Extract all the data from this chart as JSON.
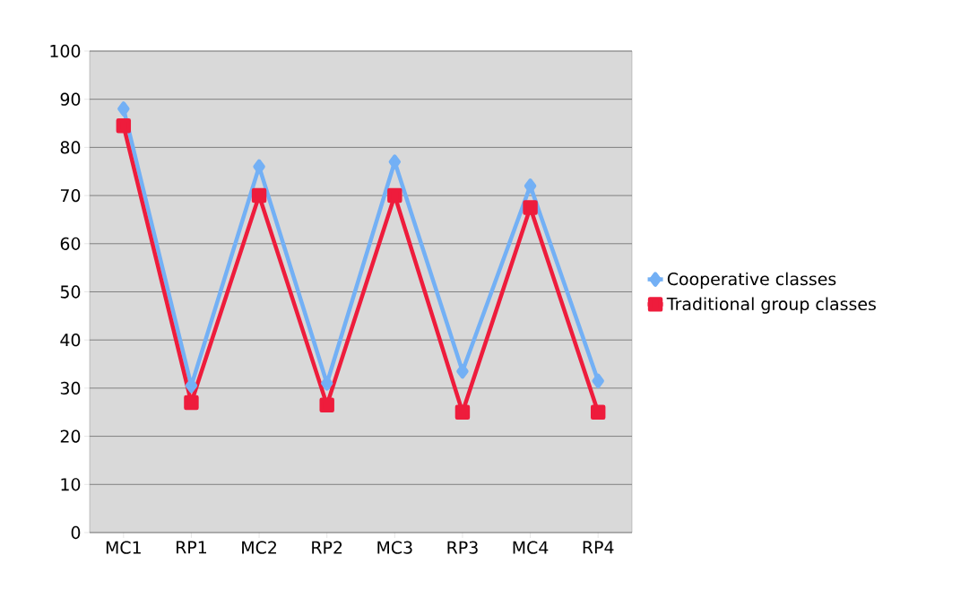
{
  "chart_data": {
    "type": "line",
    "categories": [
      "MC1",
      "RP1",
      "MC2",
      "RP2",
      "MC3",
      "RP3",
      "MC4",
      "RP4"
    ],
    "series": [
      {
        "name": "Cooperative classes",
        "color": "#73b0f5",
        "marker": "diamond",
        "values": [
          88,
          30.5,
          76,
          31,
          77,
          33.5,
          72,
          31.5
        ]
      },
      {
        "name": "Traditional group classes",
        "color": "#ee1c3c",
        "marker": "square",
        "values": [
          84.5,
          27,
          70,
          26.5,
          70,
          25,
          67.5,
          25
        ]
      }
    ],
    "ylim": [
      0,
      100
    ],
    "yticks": [
      0,
      10,
      20,
      30,
      40,
      50,
      60,
      70,
      80,
      90,
      100
    ],
    "grid": "y",
    "legend": "right"
  }
}
